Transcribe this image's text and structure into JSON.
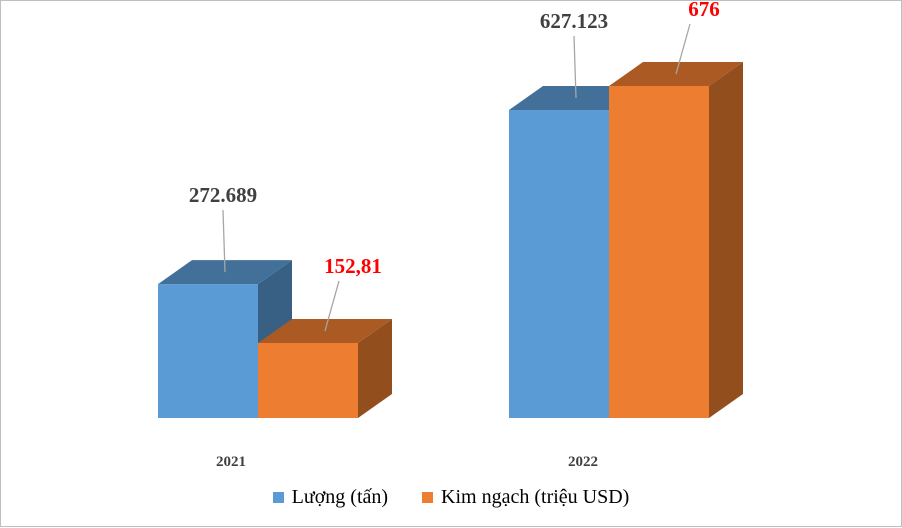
{
  "chart_data": {
    "type": "bar",
    "categories": [
      "2021",
      "2022"
    ],
    "series": [
      {
        "name": "Lượng (tấn)",
        "values": [
          272689,
          627123
        ],
        "labels": [
          "272.689",
          "627.123"
        ],
        "color": "#5b9bd5",
        "label_color": "#404040"
      },
      {
        "name": "Kim ngạch (triệu USD)",
        "values": [
          152.81,
          676
        ],
        "labels": [
          "152,81",
          "676"
        ],
        "color": "#ed7d31",
        "label_color": "#ff0000"
      }
    ],
    "legend_position": "bottom",
    "grid": false,
    "style": "3d-clustered-column"
  }
}
